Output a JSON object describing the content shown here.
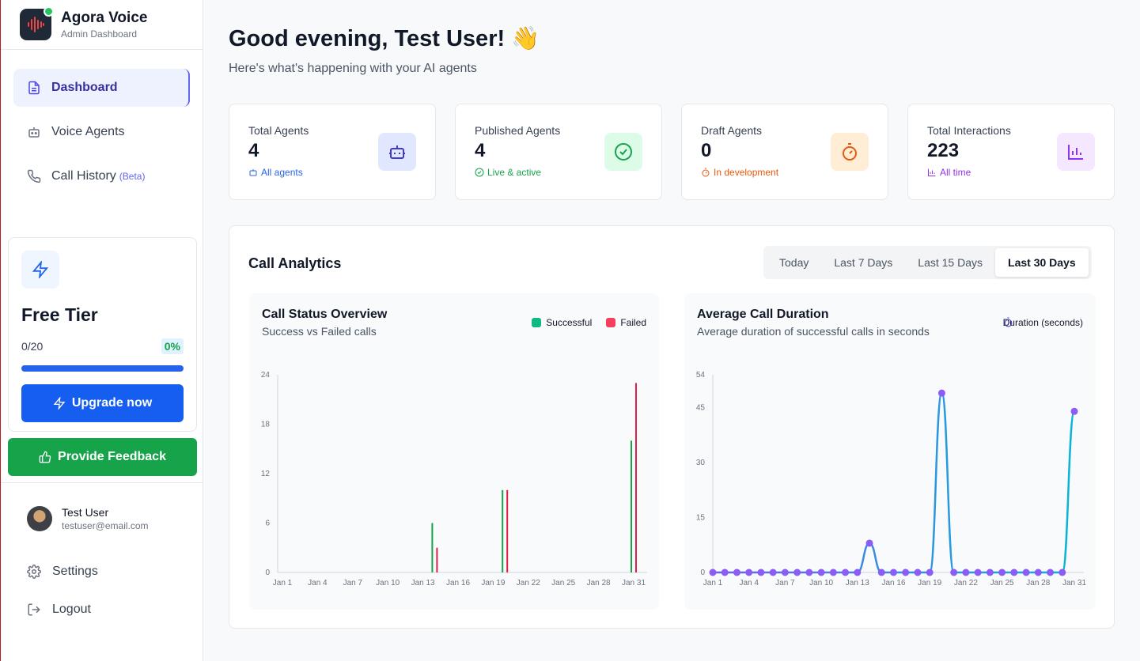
{
  "brand": {
    "title": "Agora Voice",
    "subtitle": "Admin Dashboard"
  },
  "nav": {
    "dashboard": "Dashboard",
    "voice_agents": "Voice Agents",
    "call_history": "Call History",
    "call_history_badge": "(Beta)"
  },
  "tier": {
    "title": "Free Tier",
    "usage": "0/20",
    "percent_label": "0%",
    "progress": 0,
    "upgrade_label": "Upgrade now"
  },
  "feedback_label": "Provide Feedback",
  "user": {
    "name": "Test User",
    "email": "testuser@email.com"
  },
  "bottom_nav": {
    "settings": "Settings",
    "logout": "Logout"
  },
  "header": {
    "greeting": "Good evening, Test User! 👋",
    "subtitle": "Here's what's happening with your AI agents"
  },
  "stats": [
    {
      "label": "Total Agents",
      "value": "4",
      "sub": "All agents",
      "color": "#2563eb",
      "icon": "bot-icon"
    },
    {
      "label": "Published Agents",
      "value": "4",
      "sub": "Live & active",
      "color": "#16a34a",
      "icon": "check-circle-icon"
    },
    {
      "label": "Draft Agents",
      "value": "0",
      "sub": "In development",
      "color": "#ea580c",
      "icon": "timer-icon"
    },
    {
      "label": "Total Interactions",
      "value": "223",
      "sub": "All time",
      "color": "#9333ea",
      "icon": "bar-chart-icon"
    }
  ],
  "analytics": {
    "title": "Call Analytics",
    "ranges": [
      "Today",
      "Last 7 Days",
      "Last 15 Days",
      "Last 30 Days"
    ],
    "active_range": "Last 30 Days"
  },
  "chart_data": [
    {
      "type": "bar",
      "title": "Call Status Overview",
      "subtitle": "Success vs Failed calls",
      "x_tick_labels": [
        "Jan 1",
        "Jan 4",
        "Jan 7",
        "Jan 10",
        "Jan 13",
        "Jan 16",
        "Jan 19",
        "Jan 22",
        "Jan 25",
        "Jan 28",
        "Jan 31"
      ],
      "y_ticks": [
        0,
        6,
        12,
        18,
        24
      ],
      "ylim": [
        0,
        24
      ],
      "days": [
        1,
        2,
        3,
        4,
        5,
        6,
        7,
        8,
        9,
        10,
        11,
        12,
        13,
        14,
        15,
        16,
        17,
        18,
        19,
        20,
        21,
        22,
        23,
        24,
        25,
        26,
        27,
        28,
        29,
        30,
        31
      ],
      "series": [
        {
          "name": "Successful",
          "color": "#16a34a",
          "values": [
            0,
            0,
            0,
            0,
            0,
            0,
            0,
            0,
            0,
            0,
            0,
            0,
            0,
            6,
            0,
            0,
            0,
            0,
            0,
            10,
            0,
            0,
            0,
            0,
            0,
            0,
            0,
            0,
            0,
            0,
            16
          ]
        },
        {
          "name": "Failed",
          "color": "#e11d48",
          "values": [
            0,
            0,
            0,
            0,
            0,
            0,
            0,
            0,
            0,
            0,
            0,
            0,
            0,
            3,
            0,
            0,
            0,
            0,
            0,
            10,
            0,
            0,
            0,
            0,
            0,
            0,
            0,
            0,
            0,
            0,
            23
          ]
        }
      ],
      "legend_position": "top-right",
      "grid": false
    },
    {
      "type": "line",
      "title": "Average Call Duration",
      "subtitle": "Average duration of successful calls in seconds",
      "x_tick_labels": [
        "Jan 1",
        "Jan 4",
        "Jan 7",
        "Jan 10",
        "Jan 13",
        "Jan 16",
        "Jan 19",
        "Jan 22",
        "Jan 25",
        "Jan 28",
        "Jan 31"
      ],
      "y_ticks": [
        0,
        15,
        30,
        45,
        54
      ],
      "ylim": [
        0,
        54
      ],
      "days": [
        1,
        2,
        3,
        4,
        5,
        6,
        7,
        8,
        9,
        10,
        11,
        12,
        13,
        14,
        15,
        16,
        17,
        18,
        19,
        20,
        21,
        22,
        23,
        24,
        25,
        26,
        27,
        28,
        29,
        30,
        31
      ],
      "series": [
        {
          "name": "Duration (seconds)",
          "color": "#3b82f6",
          "point_color": "#8b5cf6",
          "values": [
            0,
            0,
            0,
            0,
            0,
            0,
            0,
            0,
            0,
            0,
            0,
            0,
            0,
            8,
            0,
            0,
            0,
            0,
            0,
            49,
            0,
            0,
            0,
            0,
            0,
            0,
            0,
            0,
            0,
            0,
            44
          ]
        }
      ],
      "legend_position": "top-right",
      "grid": false
    }
  ]
}
